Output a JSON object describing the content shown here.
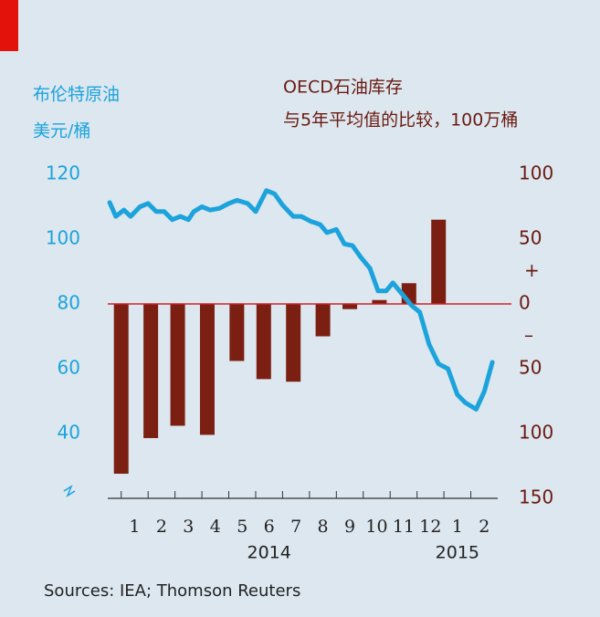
{
  "chart_data": {
    "type": "bar-line",
    "y_label": [
      "布伦特原油",
      "美元/桶"
    ],
    "y2_label": [
      "OECD石油库存",
      "与5年平均值的比较，100万桶"
    ],
    "source": "Sources: IEA; Thomson Reuters",
    "categories": [
      "1",
      "2",
      "3",
      "4",
      "5",
      "6",
      "7",
      "8",
      "9",
      "10",
      "11",
      "12",
      "1",
      "2"
    ],
    "category_x": [
      1,
      2,
      3,
      4,
      5,
      6,
      7,
      8,
      9,
      10,
      11,
      12,
      13,
      14
    ],
    "years": [
      {
        "x": 6,
        "label": "2014"
      },
      {
        "x": 13,
        "label": "2015"
      }
    ],
    "xlim": [
      0,
      14.5
    ],
    "ylim": [
      20,
      120
    ],
    "yticks": [
      40,
      60,
      80,
      100,
      120
    ],
    "y2lim": [
      -150,
      100
    ],
    "y2ticks": [
      {
        "value": 100,
        "label": "100"
      },
      {
        "value": 50,
        "label": "50"
      },
      {
        "value": 0,
        "label": "0"
      },
      {
        "value": -50,
        "label": "50"
      },
      {
        "value": -100,
        "label": "100"
      },
      {
        "value": -150,
        "label": "150"
      }
    ],
    "y2_signs": [
      {
        "value": 25,
        "label": "+"
      },
      {
        "value": -25,
        "label": "–"
      }
    ],
    "series": [
      {
        "name": "OECD石油库存",
        "type": "bar",
        "axis": "y2",
        "color": "#7b1f12",
        "x": [
          0.5,
          1.6,
          2.6,
          3.7,
          4.8,
          5.8,
          6.9,
          8.0,
          9.0,
          10.1,
          11.2,
          12.3
        ],
        "values": [
          -131,
          -103.5,
          -94,
          -101,
          -44,
          -58,
          -60,
          -25,
          -4,
          3,
          16,
          65
        ]
      },
      {
        "name": "布伦特原油",
        "type": "line",
        "axis": "y",
        "color": "#1ca3dc",
        "x": [
          0.07,
          0.3,
          0.6,
          0.85,
          1.2,
          1.5,
          1.8,
          2.1,
          2.4,
          2.7,
          3.0,
          3.2,
          3.5,
          3.8,
          4.15,
          4.5,
          4.8,
          5.2,
          5.5,
          5.9,
          6.2,
          6.5,
          6.9,
          7.2,
          7.55,
          7.9,
          8.15,
          8.5,
          8.8,
          9.1,
          9.4,
          9.75,
          10.05,
          10.35,
          10.6,
          10.95,
          11.3,
          11.6,
          11.95,
          12.3,
          12.65,
          13.0,
          13.3,
          13.7,
          14.0,
          14.3
        ],
        "values": [
          111.3,
          107,
          109,
          107,
          110,
          111,
          108.5,
          108.5,
          106,
          107,
          106,
          108.5,
          110,
          109,
          109.5,
          111,
          112,
          111,
          108.5,
          115,
          114,
          110.5,
          107,
          107,
          105.5,
          104.5,
          102,
          103,
          98.5,
          98,
          94.5,
          91,
          84,
          84,
          86.5,
          83,
          79.5,
          77.5,
          67.5,
          61.5,
          60,
          52,
          49.5,
          47.5,
          53,
          62
        ]
      }
    ],
    "zero_line_color": "#d0202e"
  }
}
